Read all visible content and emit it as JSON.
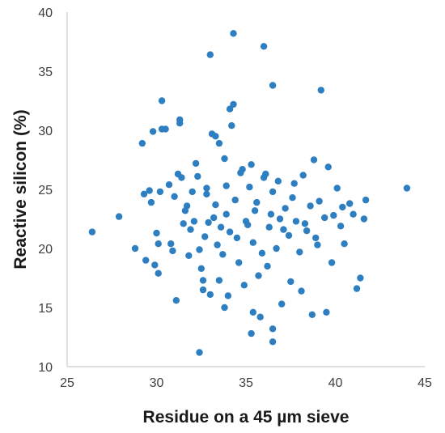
{
  "chart_data": {
    "type": "scatter",
    "title": "",
    "xlabel": "Residue on a 45 µm sieve",
    "ylabel": "Reactive silicon (%)",
    "xlim": [
      25,
      45
    ],
    "ylim": [
      10,
      40
    ],
    "xticks": [
      "25",
      "30",
      "35",
      "40",
      "45"
    ],
    "yticks": [
      "10",
      "15",
      "20",
      "25",
      "30",
      "35",
      "40"
    ],
    "grid": "none",
    "legend": "none",
    "point_color": "#2e7fc1",
    "series": [
      {
        "x": [
          26.4,
          27.9,
          28.8,
          29.2,
          29.3,
          29.4,
          29.6,
          29.8,
          29.9,
          30.1,
          30.2,
          30.3,
          30.0,
          30.1,
          29.7,
          30.5,
          30.7,
          30.9,
          31.0,
          31.2,
          31.3,
          31.4,
          31.5,
          31.7,
          31.8,
          32.0,
          32.1,
          32.2,
          32.3,
          32.4,
          32.5,
          32.6,
          32.7,
          32.8,
          33.0,
          33.1,
          33.2,
          33.3,
          33.4,
          33.5,
          33.7,
          33.8,
          33.9,
          34.1,
          34.3,
          34.4,
          34.6,
          34.8,
          35.0,
          35.2,
          35.4,
          35.6,
          35.9,
          36.1,
          36.3,
          36.5,
          36.7,
          36.9,
          37.2,
          37.4,
          37.7,
          38.0,
          38.3,
          38.6,
          38.9,
          39.1,
          39.4,
          39.8,
          40.1,
          40.5,
          40.8,
          41.2,
          41.6,
          41.7,
          44.0,
          34.3,
          36.0,
          33.0,
          36.5,
          39.2,
          30.3,
          31.3,
          34.2,
          34.1,
          33.3,
          32.4,
          36.5,
          35.3,
          36.5,
          35.8,
          37.0,
          31.1,
          33.8,
          35.4,
          34.0,
          32.6,
          33.5,
          34.9,
          35.7,
          36.2,
          37.5,
          38.1,
          38.7,
          39.5,
          30.8,
          31.9,
          32.9,
          33.6,
          34.5,
          35.1,
          35.5,
          36.4,
          37.1,
          37.8,
          38.4,
          39.0,
          39.9,
          40.3,
          41.0,
          31.6,
          32.8,
          33.9,
          34.7,
          35.3,
          36.0,
          36.8,
          37.6,
          38.2,
          38.8,
          39.6,
          40.4,
          41.4
        ],
        "y": [
          21.4,
          22.7,
          20.0,
          28.9,
          24.6,
          19.0,
          24.9,
          29.9,
          18.6,
          17.9,
          24.8,
          32.5,
          21.3,
          20.4,
          23.9,
          30.1,
          25.4,
          19.8,
          24.4,
          26.3,
          30.6,
          26.0,
          22.1,
          23.6,
          19.4,
          24.8,
          22.3,
          27.2,
          26.1,
          19.9,
          18.3,
          17.3,
          21.0,
          25.1,
          16.1,
          29.7,
          22.6,
          23.7,
          20.3,
          28.9,
          19.5,
          27.6,
          22.9,
          21.4,
          32.2,
          24.1,
          18.8,
          26.7,
          22.3,
          25.2,
          20.5,
          23.9,
          19.6,
          26.3,
          21.8,
          24.8,
          20.0,
          22.5,
          23.4,
          21.1,
          25.5,
          19.7,
          22.1,
          23.6,
          20.9,
          24.0,
          22.6,
          18.8,
          25.1,
          20.4,
          23.8,
          16.6,
          22.5,
          24.1,
          25.1,
          38.2,
          37.1,
          36.4,
          33.8,
          33.4,
          30.1,
          30.9,
          30.4,
          31.8,
          29.5,
          11.2,
          12.1,
          12.8,
          13.2,
          14.2,
          15.3,
          15.6,
          15.0,
          14.6,
          16.0,
          16.5,
          17.3,
          16.9,
          17.7,
          18.5,
          17.2,
          16.4,
          14.4,
          14.6,
          20.4,
          21.6,
          22.2,
          21.8,
          20.9,
          22.0,
          23.2,
          22.9,
          21.6,
          22.3,
          21.5,
          20.3,
          22.8,
          21.9,
          22.9,
          23.2,
          24.6,
          25.3,
          26.4,
          27.1,
          26.0,
          25.7,
          24.3,
          26.2,
          27.5,
          26.9,
          23.5,
          17.5
        ]
      }
    ]
  }
}
